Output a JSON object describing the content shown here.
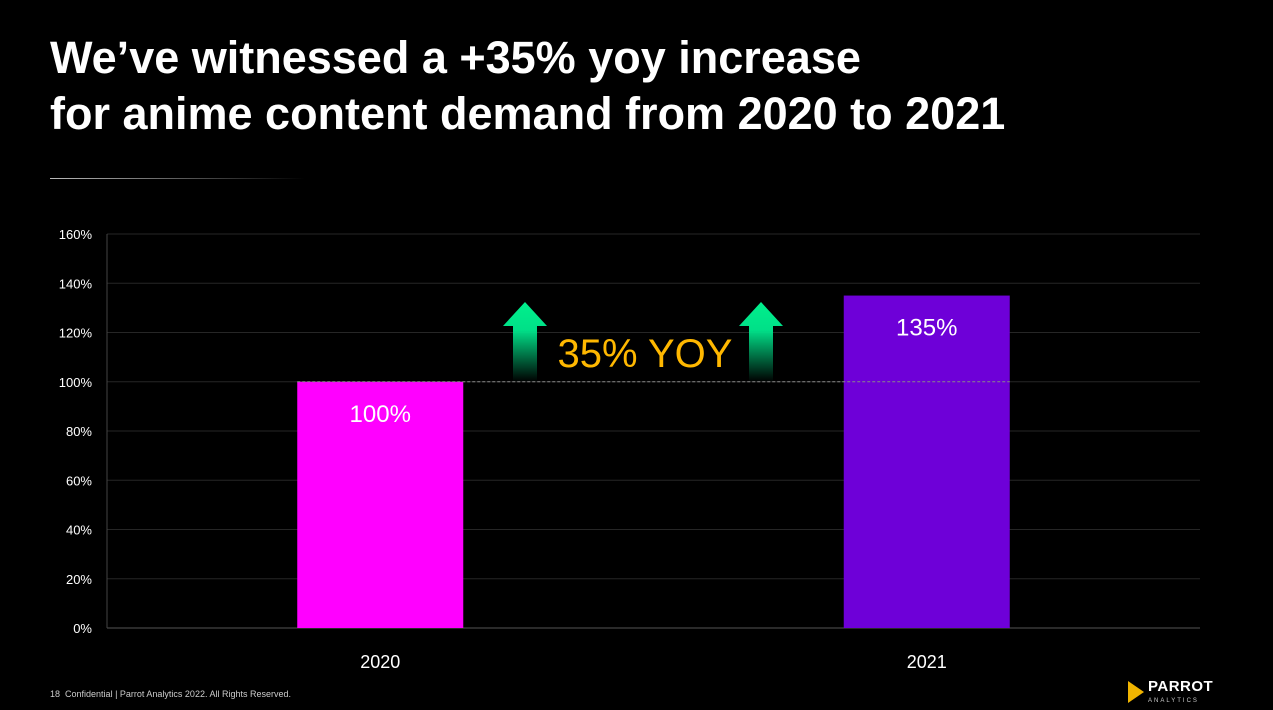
{
  "title": {
    "line1": "We’ve witnessed a +35% yoy increase",
    "line2": "for anime content demand from 2020 to 2021"
  },
  "chart_data": {
    "type": "bar",
    "categories": [
      "2020",
      "2021"
    ],
    "values": [
      100,
      135
    ],
    "data_labels": [
      "100%",
      "135%"
    ],
    "bar_colors": [
      "#ff00ff",
      "#6e00d8"
    ],
    "ylim": [
      0,
      160
    ],
    "y_ticks": [
      "0%",
      "20%",
      "40%",
      "60%",
      "80%",
      "100%",
      "120%",
      "140%",
      "160%"
    ],
    "y_tick_values": [
      0,
      20,
      40,
      60,
      80,
      100,
      120,
      140,
      160
    ],
    "grid": true,
    "reference_line": 100,
    "annotation": "35% YOY",
    "annotation_color": "#ffb800",
    "arrow_color": "#00f08c",
    "xlabel": "",
    "ylabel": ""
  },
  "footer": {
    "page": "18",
    "text": "Confidential | Parrot Analytics 2022. All Rights Reserved."
  },
  "logo": {
    "main": "PARROT",
    "sub": "ANALYTICS"
  }
}
